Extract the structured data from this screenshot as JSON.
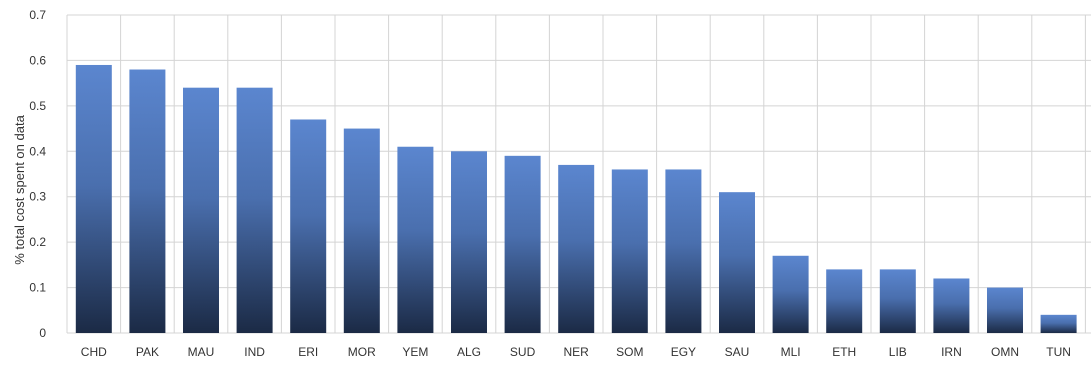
{
  "chart_data": {
    "type": "bar",
    "title": "",
    "xlabel": "",
    "ylabel": "% total cost spent on data",
    "ylim": [
      0,
      0.7
    ],
    "yticks": [
      "0",
      "0.1",
      "0.2",
      "0.3",
      "0.4",
      "0.5",
      "0.6",
      "0.7"
    ],
    "grid": true,
    "categories": [
      "CHD",
      "PAK",
      "MAU",
      "IND",
      "ERI",
      "MOR",
      "YEM",
      "ALG",
      "SUD",
      "NER",
      "SOM",
      "EGY",
      "SAU",
      "MLI",
      "ETH",
      "LIB",
      "IRN",
      "OMN",
      "TUN"
    ],
    "values": [
      0.59,
      0.58,
      0.54,
      0.54,
      0.47,
      0.45,
      0.41,
      0.4,
      0.39,
      0.37,
      0.36,
      0.36,
      0.31,
      0.17,
      0.14,
      0.14,
      0.12,
      0.1,
      0.04
    ],
    "colors": {
      "bar_top": "#5b86cf",
      "bar_bottom": "#1b2a45",
      "grid": "#d4d4d4"
    }
  }
}
